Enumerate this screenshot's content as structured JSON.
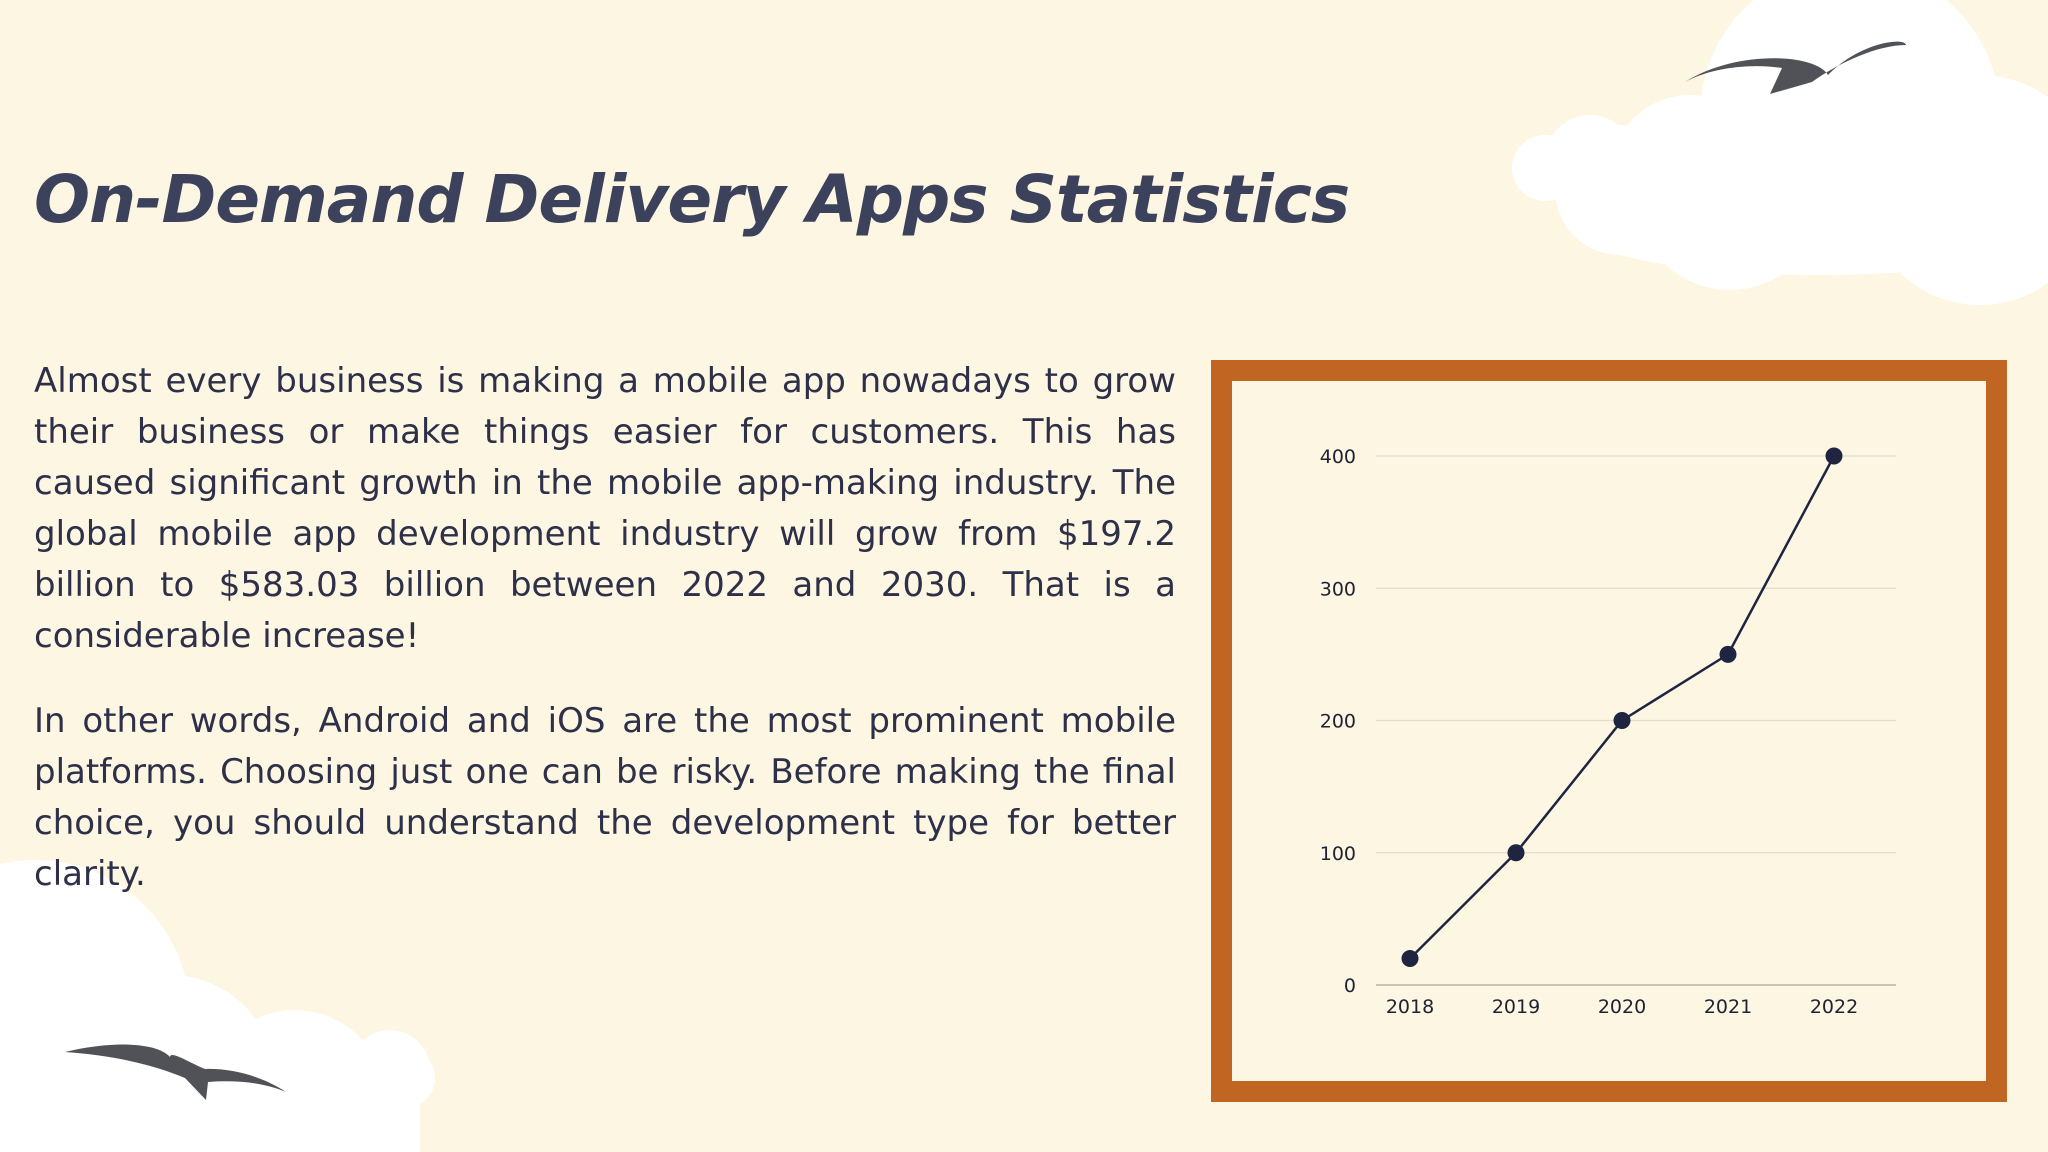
{
  "page": {
    "title": "On-Demand Delivery Apps Statistics",
    "paragraphs": [
      "Almost every business is making a mobile app nowadays to grow their business or make things easier for customers. This has caused significant growth in the mobile app-making industry. The global mobile app development industry will grow from $197.2 billion to $583.03 billion between 2022 and 2030. That is a considerable increase!",
      "In other words, Android and iOS are the most prominent mobile platforms. Choosing just one can be risky. Before making the final choice, you should understand the development type for better clarity."
    ]
  },
  "colors": {
    "background": "#fcf6e3",
    "title": "#3c415c",
    "text": "#2d3048",
    "frame": "#c06622",
    "line": "#1f2540",
    "gridline": "#e3ddca",
    "cloud": "#ffffff",
    "bird": "#505257"
  },
  "decorations": {
    "birds": [
      "bird-icon",
      "bird-icon"
    ],
    "clouds": [
      "cloud-icon",
      "cloud-icon"
    ]
  },
  "chart_data": {
    "type": "line",
    "categories": [
      "2018",
      "2019",
      "2020",
      "2021",
      "2022"
    ],
    "values": [
      20,
      100,
      200,
      250,
      400
    ],
    "yticks": [
      0,
      100,
      200,
      300,
      400
    ],
    "ylim": [
      0,
      400
    ],
    "title": "",
    "xlabel": "",
    "ylabel": "",
    "grid": true,
    "legend": "none"
  }
}
